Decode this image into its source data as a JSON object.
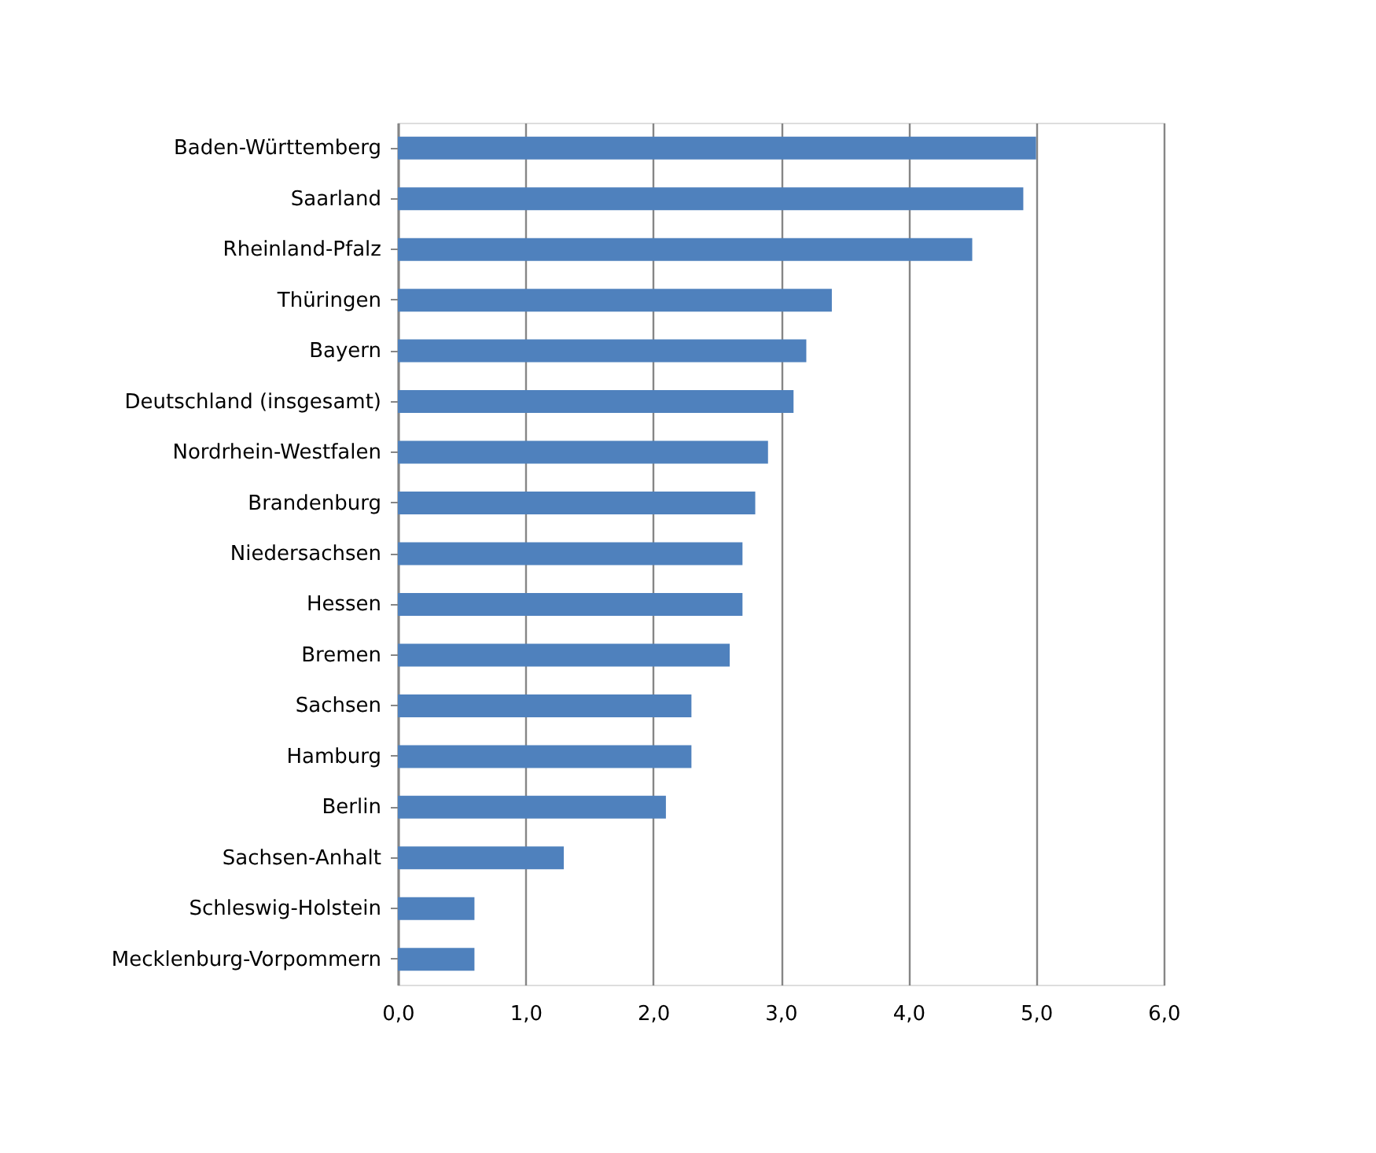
{
  "chart_data": {
    "type": "bar",
    "orientation": "horizontal",
    "categories": [
      "Baden-Württemberg",
      "Saarland",
      "Rheinland-Pfalz",
      "Thüringen",
      "Bayern",
      "Deutschland (insgesamt)",
      "Nordrhein-Westfalen",
      "Brandenburg",
      "Niedersachsen",
      "Hessen",
      "Bremen",
      "Sachsen",
      "Hamburg",
      "Berlin",
      "Sachsen-Anhalt",
      "Schleswig-Holstein",
      "Mecklenburg-Vorpommern"
    ],
    "values": [
      5.0,
      4.9,
      4.5,
      3.4,
      3.2,
      3.1,
      2.9,
      2.8,
      2.7,
      2.7,
      2.6,
      2.3,
      2.3,
      2.1,
      1.3,
      0.6,
      0.6
    ],
    "color": "#4f81bd",
    "xlim": [
      0,
      6
    ],
    "xticks": [
      {
        "value": 0,
        "label": "0,0"
      },
      {
        "value": 1,
        "label": "1,0"
      },
      {
        "value": 2,
        "label": "2,0"
      },
      {
        "value": 3,
        "label": "3,0"
      },
      {
        "value": 4,
        "label": "4,0"
      },
      {
        "value": 5,
        "label": "5,0"
      },
      {
        "value": 6,
        "label": "6,0"
      }
    ],
    "grid": "x"
  }
}
